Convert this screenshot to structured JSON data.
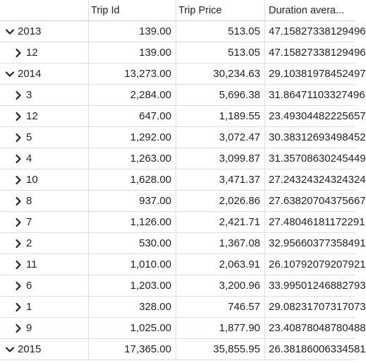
{
  "columns": [
    "",
    "Trip Id",
    "Trip Price",
    "Duration avera..."
  ],
  "rows": [
    {
      "label": "2013",
      "expanded": true,
      "level": 0,
      "trip_id": "139.00",
      "trip_price": "513.05",
      "duration": "47.15827338129496"
    },
    {
      "label": "12",
      "expanded": false,
      "level": 1,
      "trip_id": "139.00",
      "trip_price": "513.05",
      "duration": "47.15827338129496"
    },
    {
      "label": "2014",
      "expanded": true,
      "level": 0,
      "trip_id": "13,273.00",
      "trip_price": "30,234.63",
      "duration": "29.10381978452497"
    },
    {
      "label": "3",
      "expanded": false,
      "level": 1,
      "trip_id": "2,284.00",
      "trip_price": "5,696.38",
      "duration": "31.86471103327496"
    },
    {
      "label": "12",
      "expanded": false,
      "level": 1,
      "trip_id": "647.00",
      "trip_price": "1,189.55",
      "duration": "23.49304482225657"
    },
    {
      "label": "5",
      "expanded": false,
      "level": 1,
      "trip_id": "1,292.00",
      "trip_price": "3,072.47",
      "duration": "30.38312693498452"
    },
    {
      "label": "4",
      "expanded": false,
      "level": 1,
      "trip_id": "1,263.00",
      "trip_price": "3,099.87",
      "duration": "31.35708630245449"
    },
    {
      "label": "10",
      "expanded": false,
      "level": 1,
      "trip_id": "1,628.00",
      "trip_price": "3,471.37",
      "duration": "27.24324324324324"
    },
    {
      "label": "8",
      "expanded": false,
      "level": 1,
      "trip_id": "937.00",
      "trip_price": "2,026.86",
      "duration": "27.63820704375667"
    },
    {
      "label": "7",
      "expanded": false,
      "level": 1,
      "trip_id": "1,126.00",
      "trip_price": "2,421.71",
      "duration": "27.48046181172291"
    },
    {
      "label": "2",
      "expanded": false,
      "level": 1,
      "trip_id": "530.00",
      "trip_price": "1,367.08",
      "duration": "32.95660377358491"
    },
    {
      "label": "11",
      "expanded": false,
      "level": 1,
      "trip_id": "1,010.00",
      "trip_price": "2,063.91",
      "duration": "26.10792079207921"
    },
    {
      "label": "6",
      "expanded": false,
      "level": 1,
      "trip_id": "1,203.00",
      "trip_price": "3,200.96",
      "duration": "33.99501246882793"
    },
    {
      "label": "1",
      "expanded": false,
      "level": 1,
      "trip_id": "328.00",
      "trip_price": "746.57",
      "duration": "29.08231707317073"
    },
    {
      "label": "9",
      "expanded": false,
      "level": 1,
      "trip_id": "1,025.00",
      "trip_price": "1,877.90",
      "duration": "23.40878048780488"
    },
    {
      "label": "2015",
      "expanded": true,
      "level": 0,
      "trip_id": "17,365.00",
      "trip_price": "35,855.95",
      "duration": "26.38186006334581"
    }
  ]
}
